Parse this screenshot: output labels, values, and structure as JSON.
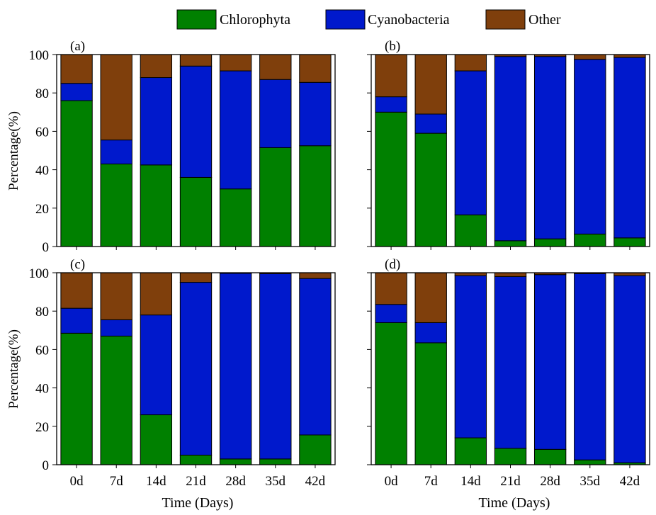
{
  "legend": [
    {
      "name": "Chlorophyta",
      "color": "#008000"
    },
    {
      "name": "Cyanobacteria",
      "color": "#0019CC"
    },
    {
      "name": "Other",
      "color": "#7F3F0C"
    }
  ],
  "ylabel": "Percentage(%)",
  "xlabel": "Time (Days)",
  "chart_data": [
    {
      "type": "bar",
      "stacked": true,
      "panel_label": "(a)",
      "categories": [
        "0d",
        "7d",
        "14d",
        "21d",
        "28d",
        "35d",
        "42d"
      ],
      "series": [
        {
          "name": "Chlorophyta",
          "values": [
            76,
            43,
            42.5,
            36,
            30,
            51.5,
            52.5
          ]
        },
        {
          "name": "Cyanobacteria",
          "values": [
            9,
            12.5,
            45.5,
            58,
            61.5,
            35.5,
            33
          ]
        },
        {
          "name": "Other",
          "values": [
            15,
            44.5,
            12,
            6,
            8.5,
            13,
            14.5
          ]
        }
      ],
      "ylim": [
        0,
        100
      ],
      "yticks": [
        0,
        20,
        40,
        60,
        80,
        100
      ]
    },
    {
      "type": "bar",
      "stacked": true,
      "panel_label": "(b)",
      "categories": [
        "0d",
        "7d",
        "14d",
        "21d",
        "28d",
        "35d",
        "42d"
      ],
      "series": [
        {
          "name": "Chlorophyta",
          "values": [
            70,
            59,
            16.5,
            3,
            4,
            6.5,
            4.5
          ]
        },
        {
          "name": "Cyanobacteria",
          "values": [
            8,
            10,
            75,
            96,
            95,
            91,
            94
          ]
        },
        {
          "name": "Other",
          "values": [
            22,
            31,
            8.5,
            1,
            1,
            2.5,
            1.5
          ]
        }
      ],
      "ylim": [
        0,
        100
      ],
      "yticks": [
        0,
        20,
        40,
        60,
        80,
        100
      ]
    },
    {
      "type": "bar",
      "stacked": true,
      "panel_label": "(c)",
      "categories": [
        "0d",
        "7d",
        "14d",
        "21d",
        "28d",
        "35d",
        "42d"
      ],
      "series": [
        {
          "name": "Chlorophyta",
          "values": [
            68.5,
            67,
            26,
            5,
            3,
            3,
            15.5
          ]
        },
        {
          "name": "Cyanobacteria",
          "values": [
            13,
            8.5,
            52,
            90,
            96.7,
            96.5,
            81.5
          ]
        },
        {
          "name": "Other",
          "values": [
            18.5,
            24.5,
            22,
            5,
            0.3,
            0.5,
            3
          ]
        }
      ],
      "ylim": [
        0,
        100
      ],
      "yticks": [
        0,
        20,
        40,
        60,
        80,
        100
      ]
    },
    {
      "type": "bar",
      "stacked": true,
      "panel_label": "(d)",
      "categories": [
        "0d",
        "7d",
        "14d",
        "21d",
        "28d",
        "35d",
        "42d"
      ],
      "series": [
        {
          "name": "Chlorophyta",
          "values": [
            74,
            63.5,
            14,
            8.5,
            8,
            2.5,
            1
          ]
        },
        {
          "name": "Cyanobacteria",
          "values": [
            9.5,
            10.5,
            84.5,
            89.5,
            91,
            97,
            97.5
          ]
        },
        {
          "name": "Other",
          "values": [
            16.5,
            26,
            1.5,
            2,
            1,
            0.5,
            1.5
          ]
        }
      ],
      "ylim": [
        0,
        100
      ],
      "yticks": [
        0,
        20,
        40,
        60,
        80,
        100
      ]
    }
  ]
}
